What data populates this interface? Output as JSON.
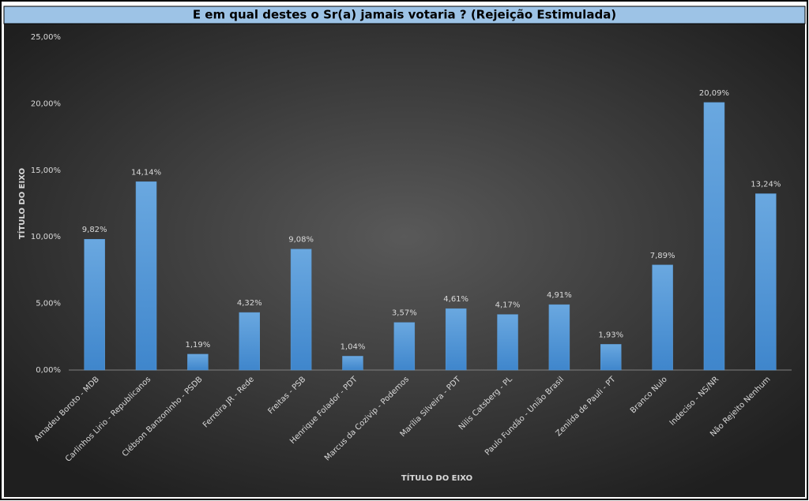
{
  "chart_data": {
    "type": "bar",
    "title": "E em qual destes o Sr(a) jamais votaria ? (Rejeição Estimulada)",
    "x_label": "TÍTULO DO EIXO",
    "y_label": "TÍTULO DO EIXO",
    "categories": [
      "Amadeu Boroto - MDB",
      "Carlinhos Lirio - Republicanos",
      "Clébson Banzoninho - PSDB",
      "Ferreira JR - Rede",
      "Freitas - PSB",
      "Henrique Folador - PDT",
      "Marcus da Cozivip - Podemos",
      "Marília Silveira - PDT",
      "Nilis Catsberg - PL",
      "Paulo Fundão - União Brasil",
      "Zenilda de Pauli - PT",
      "Branco Nulo",
      "Indeciso - NS/NR",
      "Não Rejeito Nenhum"
    ],
    "values": [
      9.82,
      14.14,
      1.19,
      4.32,
      9.08,
      1.04,
      3.57,
      4.61,
      4.17,
      4.91,
      1.93,
      7.89,
      20.09,
      13.24
    ],
    "value_labels": [
      "9,82%",
      "14,14%",
      "1,19%",
      "4,32%",
      "9,08%",
      "1,04%",
      "3,57%",
      "4,61%",
      "4,17%",
      "4,91%",
      "1,93%",
      "7,89%",
      "20,09%",
      "13,24%"
    ],
    "color": "#5b9bd5",
    "ylim": [
      0,
      25
    ],
    "yticks": [
      {
        "value": 0,
        "label": "0,00%"
      },
      {
        "value": 5,
        "label": "5,00%"
      },
      {
        "value": 10,
        "label": "10,00%"
      },
      {
        "value": 15,
        "label": "15,00%"
      },
      {
        "value": 20,
        "label": "20,00%"
      },
      {
        "value": 25,
        "label": "25,00%"
      }
    ],
    "grid": false
  }
}
